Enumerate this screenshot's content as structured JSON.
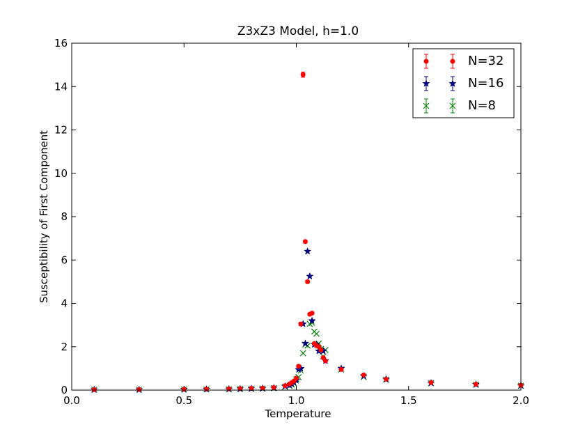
{
  "chart_data": {
    "type": "scatter",
    "title": "Z3xZ3 Model, h=1.0",
    "xlabel": "Temperature",
    "ylabel": "Susceptibility of First Component",
    "xlim": [
      0.0,
      2.0
    ],
    "ylim": [
      0,
      16
    ],
    "x_ticks": [
      "0.0",
      "0.5",
      "1.0",
      "1.5",
      "2.0"
    ],
    "y_ticks": [
      "0",
      "2",
      "4",
      "6",
      "8",
      "10",
      "12",
      "14",
      "16"
    ],
    "grid": false,
    "legend_position": "top-right",
    "series": [
      {
        "name": "N=32",
        "color": "#ff0000",
        "marker": "circle",
        "points": [
          [
            0.1,
            0.02
          ],
          [
            0.3,
            0.03
          ],
          [
            0.5,
            0.04
          ],
          [
            0.6,
            0.05
          ],
          [
            0.7,
            0.06
          ],
          [
            0.75,
            0.07
          ],
          [
            0.8,
            0.08
          ],
          [
            0.85,
            0.09
          ],
          [
            0.9,
            0.12
          ],
          [
            0.95,
            0.2
          ],
          [
            0.97,
            0.28
          ],
          [
            0.98,
            0.35
          ],
          [
            0.99,
            0.42
          ],
          [
            1.0,
            0.55
          ],
          [
            1.01,
            1.1
          ],
          [
            1.02,
            3.05
          ],
          [
            1.03,
            14.55
          ],
          [
            1.04,
            6.85
          ],
          [
            1.05,
            5.0
          ],
          [
            1.06,
            3.5
          ],
          [
            1.07,
            3.55
          ],
          [
            1.08,
            2.15
          ],
          [
            1.09,
            2.05
          ],
          [
            1.1,
            2.0
          ],
          [
            1.11,
            1.85
          ],
          [
            1.12,
            1.5
          ],
          [
            1.13,
            1.35
          ],
          [
            1.2,
            0.95
          ],
          [
            1.3,
            0.7
          ],
          [
            1.4,
            0.5
          ],
          [
            1.6,
            0.35
          ],
          [
            1.8,
            0.27
          ],
          [
            2.0,
            0.22
          ]
        ],
        "errors": [
          0.0,
          0.0,
          0.0,
          0.0,
          0.0,
          0.0,
          0.0,
          0.0,
          0.0,
          0.0,
          0.0,
          0.0,
          0.0,
          0.0,
          0.05,
          0.08,
          0.12,
          0.07,
          0.06,
          0.05,
          0.05,
          0.04,
          0.04,
          0.04,
          0.03,
          0.03,
          0.03,
          0.02,
          0.02,
          0.0,
          0.0,
          0.0,
          0.0
        ]
      },
      {
        "name": "N=16",
        "color": "#000080",
        "marker": "star",
        "points": [
          [
            0.1,
            0.02
          ],
          [
            0.3,
            0.02
          ],
          [
            0.5,
            0.03
          ],
          [
            0.6,
            0.04
          ],
          [
            0.7,
            0.05
          ],
          [
            0.75,
            0.06
          ],
          [
            0.8,
            0.07
          ],
          [
            0.85,
            0.08
          ],
          [
            0.9,
            0.1
          ],
          [
            0.95,
            0.18
          ],
          [
            0.97,
            0.22
          ],
          [
            0.98,
            0.28
          ],
          [
            0.99,
            0.35
          ],
          [
            1.0,
            0.45
          ],
          [
            1.01,
            0.95
          ],
          [
            1.02,
            1.0
          ],
          [
            1.03,
            3.05
          ],
          [
            1.04,
            2.15
          ],
          [
            1.05,
            6.4
          ],
          [
            1.06,
            5.25
          ],
          [
            1.07,
            3.2
          ],
          [
            1.08,
            2.1
          ],
          [
            1.09,
            2.1
          ],
          [
            1.1,
            1.8
          ],
          [
            1.11,
            1.85
          ],
          [
            1.12,
            1.8
          ],
          [
            1.13,
            1.35
          ],
          [
            1.2,
            1.0
          ],
          [
            1.3,
            0.65
          ],
          [
            1.4,
            0.5
          ],
          [
            1.6,
            0.33
          ],
          [
            1.8,
            0.26
          ],
          [
            2.0,
            0.21
          ]
        ]
      },
      {
        "name": "N=8",
        "color": "#008000",
        "marker": "x",
        "points": [
          [
            0.1,
            0.02
          ],
          [
            0.3,
            0.02
          ],
          [
            0.5,
            0.03
          ],
          [
            0.6,
            0.03
          ],
          [
            0.7,
            0.04
          ],
          [
            0.75,
            0.05
          ],
          [
            0.8,
            0.06
          ],
          [
            0.85,
            0.07
          ],
          [
            0.9,
            0.09
          ],
          [
            0.95,
            0.15
          ],
          [
            0.97,
            0.2
          ],
          [
            0.98,
            0.25
          ],
          [
            0.99,
            0.3
          ],
          [
            1.0,
            0.5
          ],
          [
            1.01,
            0.6
          ],
          [
            1.02,
            0.9
          ],
          [
            1.03,
            1.7
          ],
          [
            1.04,
            2.1
          ],
          [
            1.05,
            2.05
          ],
          [
            1.06,
            3.05
          ],
          [
            1.07,
            3.1
          ],
          [
            1.08,
            2.7
          ],
          [
            1.09,
            2.6
          ],
          [
            1.1,
            2.15
          ],
          [
            1.11,
            1.9
          ],
          [
            1.12,
            1.55
          ],
          [
            1.13,
            1.85
          ],
          [
            1.2,
            0.95
          ],
          [
            1.3,
            0.6
          ],
          [
            1.4,
            0.48
          ],
          [
            1.6,
            0.32
          ],
          [
            1.8,
            0.25
          ],
          [
            2.0,
            0.2
          ]
        ]
      }
    ]
  }
}
